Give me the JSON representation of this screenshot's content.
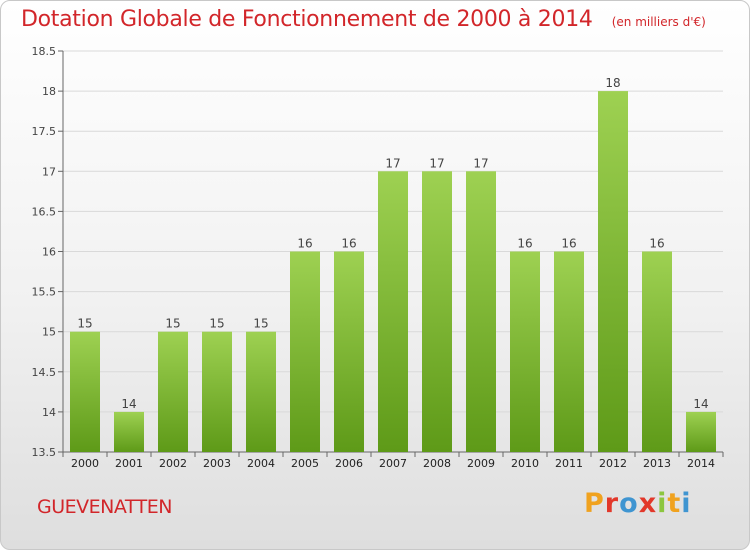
{
  "header": {
    "title": "Dotation Globale de Fonctionnement de 2000 à 2014",
    "subtitle": "(en milliers d'€)"
  },
  "footer": {
    "commune": "GUEVENATTEN",
    "logo_text": "Proxiti",
    "logo_colors": [
      "#f0a21f",
      "#e2382a",
      "#3f95d1",
      "#e2382a",
      "#8cc63f",
      "#f0a21f",
      "#3f95d1"
    ]
  },
  "chart_data": {
    "type": "bar",
    "categories": [
      "2000",
      "2001",
      "2002",
      "2003",
      "2004",
      "2005",
      "2006",
      "2007",
      "2008",
      "2009",
      "2010",
      "2011",
      "2012",
      "2013",
      "2014"
    ],
    "values": [
      15,
      14,
      15,
      15,
      15,
      16,
      16,
      17,
      17,
      17,
      16,
      16,
      18,
      16,
      14
    ],
    "data_labels": [
      "15",
      "14",
      "15",
      "15",
      "15",
      "16",
      "16",
      "17",
      "17",
      "17",
      "16",
      "16",
      "18",
      "16",
      "14"
    ],
    "ylim": [
      13.5,
      18.5
    ],
    "yticks": [
      13.5,
      14,
      14.5,
      15,
      15.5,
      16,
      16.5,
      17,
      17.5,
      18,
      18.5
    ],
    "ytick_labels": [
      "13.5",
      "14",
      "14.5",
      "15",
      "15.5",
      "16",
      "16.5",
      "17",
      "17.5",
      "18",
      "18.5"
    ],
    "bar_color_top": "#9ed152",
    "bar_color_bottom": "#5e9a18",
    "grid": true
  }
}
